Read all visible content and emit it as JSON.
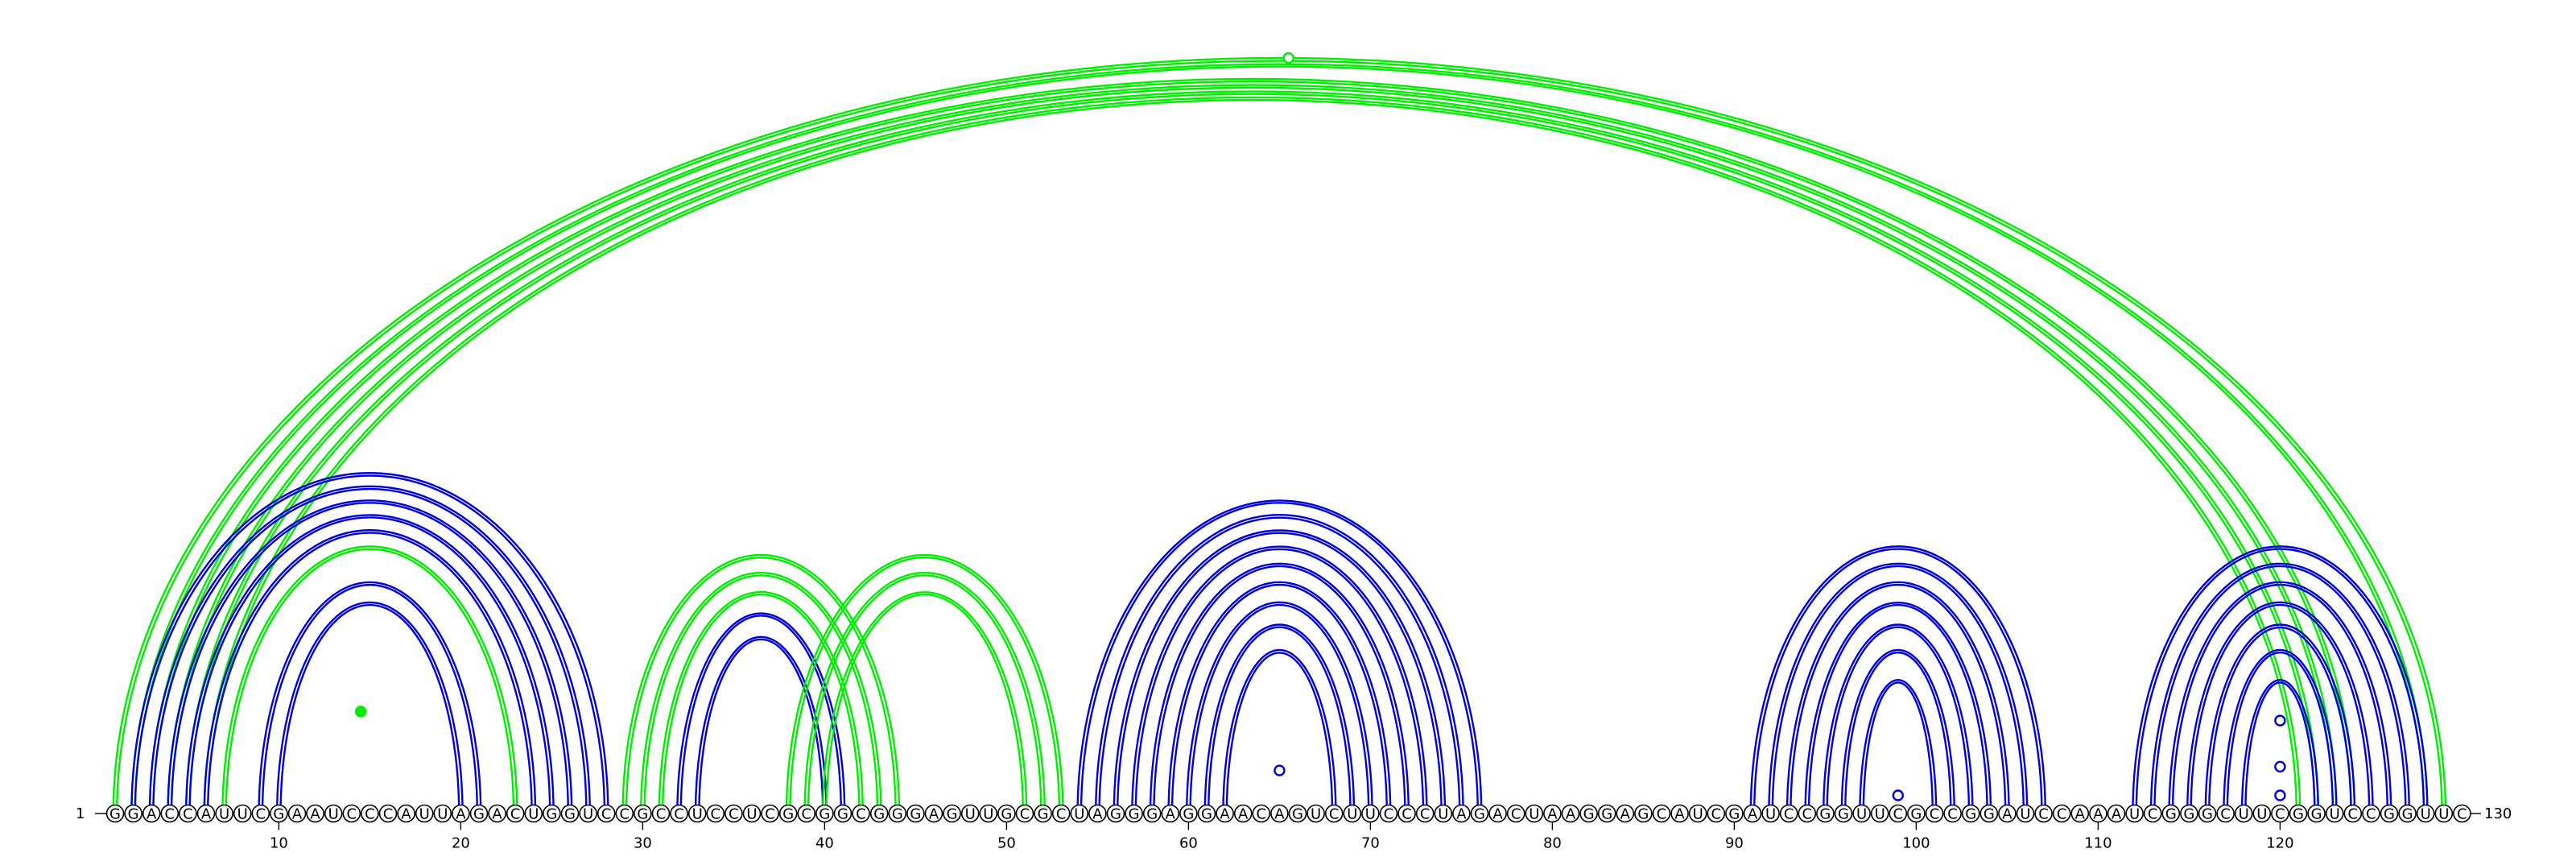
{
  "diagram": {
    "sequence": "GGACCAUUCGAAUCCCAUUAGACUGGUCCGCCUCCUCGCGGCGGGAGUUGCGCUAGGGAGGAACAGUCUUCCCUAGACUAAGGAGCAUCGAUCCGGUUCGCCGGAUCCAAAUCGGGCUUCGGUCCGGUUC",
    "start_label": "1",
    "end_label": "130",
    "tick_labels": [
      "10",
      "20",
      "30",
      "40",
      "50",
      "60",
      "70",
      "80",
      "90",
      "100",
      "110",
      "120"
    ],
    "colors": {
      "green": "#00ee00",
      "blue": "#0000dd",
      "outline": "#000000"
    },
    "arc_groups": [
      {
        "color": "green",
        "pairs": [
          [
            1,
            129
          ],
          [
            2,
            128
          ],
          [
            3,
            124
          ],
          [
            4,
            123
          ],
          [
            5,
            122
          ],
          [
            6,
            121
          ]
        ]
      },
      {
        "color": "blue",
        "pairs": [
          [
            2,
            28
          ],
          [
            3,
            27
          ],
          [
            4,
            26
          ],
          [
            5,
            25
          ],
          [
            6,
            24
          ],
          [
            9,
            21
          ],
          [
            10,
            20
          ]
        ]
      },
      {
        "color": "green",
        "pairs": [
          [
            7,
            23
          ]
        ]
      },
      {
        "color": "green",
        "pairs": [
          [
            29,
            44
          ],
          [
            30,
            43
          ],
          [
            31,
            42
          ]
        ]
      },
      {
        "color": "blue",
        "pairs": [
          [
            32,
            41
          ],
          [
            33,
            40
          ]
        ]
      },
      {
        "color": "green",
        "pairs": [
          [
            38,
            53
          ],
          [
            39,
            52
          ],
          [
            40,
            51
          ]
        ]
      },
      {
        "color": "blue",
        "pairs": [
          [
            54,
            76
          ],
          [
            55,
            75
          ],
          [
            56,
            74
          ],
          [
            57,
            73
          ],
          [
            58,
            72
          ],
          [
            59,
            71
          ],
          [
            60,
            70
          ],
          [
            61,
            69
          ],
          [
            62,
            68
          ]
        ]
      },
      {
        "color": "blue",
        "pairs": [
          [
            91,
            107
          ],
          [
            92,
            106
          ],
          [
            93,
            105
          ],
          [
            94,
            104
          ],
          [
            95,
            103
          ],
          [
            96,
            102
          ],
          [
            97,
            101
          ]
        ]
      },
      {
        "color": "blue",
        "pairs": [
          [
            112,
            128
          ],
          [
            113,
            127
          ],
          [
            114,
            126
          ],
          [
            115,
            125
          ],
          [
            116,
            124
          ],
          [
            117,
            123
          ],
          [
            118,
            122
          ]
        ]
      }
    ],
    "marker_icons": [
      {
        "pos": 65.5,
        "height_frac": 1.0,
        "color": "green",
        "filled": false
      },
      {
        "pos": 14.5,
        "height_frac": 0.135,
        "color": "green",
        "filled": true
      },
      {
        "pos": 65,
        "height_frac": 0.057,
        "color": "blue",
        "filled": false
      },
      {
        "pos": 99,
        "height_frac": 0.024,
        "color": "blue",
        "filled": false
      },
      {
        "pos": 120,
        "height_frac": 0.123,
        "color": "blue",
        "filled": false
      },
      {
        "pos": 120,
        "height_frac": 0.062,
        "color": "blue",
        "filled": false
      },
      {
        "pos": 120,
        "height_frac": 0.024,
        "color": "blue",
        "filled": false
      }
    ]
  }
}
